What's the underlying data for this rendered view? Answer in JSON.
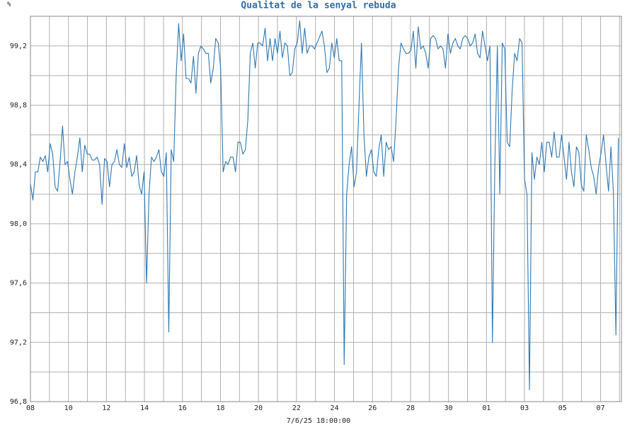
{
  "chart_data": {
    "type": "line",
    "title": "Qualitat de la senyal rebuda",
    "y_label": "%",
    "x_label": "7/6/25 18:00:00",
    "xlim": [
      0,
      31.1
    ],
    "ylim": [
      96.8,
      99.4
    ],
    "grid": true,
    "xticks": [
      {
        "value": 0,
        "label": "08"
      },
      {
        "value": 2,
        "label": "10"
      },
      {
        "value": 4,
        "label": "12"
      },
      {
        "value": 6,
        "label": "14"
      },
      {
        "value": 8,
        "label": "16"
      },
      {
        "value": 10,
        "label": "18"
      },
      {
        "value": 12,
        "label": "20"
      },
      {
        "value": 14,
        "label": "22"
      },
      {
        "value": 16,
        "label": "24"
      },
      {
        "value": 18,
        "label": "26"
      },
      {
        "value": 20,
        "label": "28"
      },
      {
        "value": 22,
        "label": "30"
      },
      {
        "value": 24,
        "label": "01"
      },
      {
        "value": 26,
        "label": "03"
      },
      {
        "value": 28,
        "label": "05"
      },
      {
        "value": 30,
        "label": "07"
      }
    ],
    "minor_xticks": [
      1,
      3,
      5,
      7,
      9,
      11,
      13,
      15,
      17,
      19,
      21,
      23,
      25,
      27,
      29,
      31
    ],
    "yticks": [
      {
        "value": 96.8,
        "label": "96,8"
      },
      {
        "value": 97.2,
        "label": "97,2"
      },
      {
        "value": 97.6,
        "label": "97,6"
      },
      {
        "value": 98.0,
        "label": "98,0"
      },
      {
        "value": 98.4,
        "label": "98,4"
      },
      {
        "value": 98.8,
        "label": "98,8"
      },
      {
        "value": 99.2,
        "label": "99,2"
      }
    ],
    "minor_yticks": [
      97.0,
      97.4,
      97.8,
      98.2,
      98.6,
      99.0,
      99.4
    ],
    "x": [
      0,
      0.13,
      0.26,
      0.39,
      0.52,
      0.65,
      0.78,
      0.91,
      1.04,
      1.17,
      1.3,
      1.43,
      1.56,
      1.69,
      1.82,
      1.95,
      2.08,
      2.21,
      2.34,
      2.47,
      2.6,
      2.73,
      2.86,
      2.99,
      3.12,
      3.25,
      3.38,
      3.51,
      3.64,
      3.77,
      3.9,
      4.03,
      4.16,
      4.29,
      4.42,
      4.55,
      4.68,
      4.81,
      4.94,
      5.07,
      5.2,
      5.33,
      5.46,
      5.59,
      5.72,
      5.85,
      5.98,
      6.11,
      6.24,
      6.37,
      6.5,
      6.63,
      6.76,
      6.89,
      7.02,
      7.15,
      7.28,
      7.41,
      7.54,
      7.67,
      7.8,
      7.93,
      8.06,
      8.19,
      8.32,
      8.45,
      8.58,
      8.71,
      8.84,
      8.97,
      9.1,
      9.23,
      9.36,
      9.49,
      9.62,
      9.75,
      9.88,
      10.01,
      10.14,
      10.27,
      10.4,
      10.53,
      10.66,
      10.79,
      10.92,
      11.05,
      11.18,
      11.31,
      11.44,
      11.57,
      11.7,
      11.83,
      11.96,
      12.09,
      12.22,
      12.35,
      12.48,
      12.61,
      12.74,
      12.87,
      13,
      13.13,
      13.26,
      13.39,
      13.52,
      13.65,
      13.78,
      13.91,
      14.04,
      14.17,
      14.3,
      14.43,
      14.56,
      14.69,
      14.82,
      14.95,
      15.08,
      15.21,
      15.34,
      15.47,
      15.6,
      15.73,
      15.86,
      15.99,
      16.12,
      16.25,
      16.38,
      16.51,
      16.64,
      16.77,
      16.9,
      17.03,
      17.16,
      17.29,
      17.42,
      17.55,
      17.68,
      17.81,
      17.94,
      18.07,
      18.2,
      18.33,
      18.46,
      18.59,
      18.72,
      18.85,
      18.98,
      19.11,
      19.24,
      19.37,
      19.5,
      19.63,
      19.76,
      19.89,
      20.02,
      20.15,
      20.28,
      20.41,
      20.54,
      20.67,
      20.8,
      20.93,
      21.06,
      21.19,
      21.32,
      21.45,
      21.58,
      21.71,
      21.84,
      21.97,
      22.1,
      22.23,
      22.36,
      22.49,
      22.62,
      22.75,
      22.88,
      23.01,
      23.14,
      23.27,
      23.4,
      23.53,
      23.66,
      23.79,
      23.92,
      24.05,
      24.18,
      24.31,
      24.44,
      24.57,
      24.7,
      24.83,
      24.96,
      25.09,
      25.22,
      25.35,
      25.48,
      25.61,
      25.74,
      25.87,
      26,
      26.13,
      26.26,
      26.39,
      26.52,
      26.65,
      26.78,
      26.91,
      27.04,
      27.17,
      27.3,
      27.43,
      27.56,
      27.69,
      27.82,
      27.95,
      28.08,
      28.21,
      28.34,
      28.47,
      28.6,
      28.73,
      28.86,
      28.99,
      29.12,
      29.25,
      29.38,
      29.51,
      29.64,
      29.77,
      29.9,
      30.03,
      30.16,
      30.29,
      30.42,
      30.55,
      30.68,
      30.81,
      30.94
    ],
    "series": [
      {
        "color": "#2f78b4",
        "values": [
          98.27,
          98.16,
          98.35,
          98.35,
          98.45,
          98.42,
          98.46,
          98.35,
          98.54,
          98.47,
          98.25,
          98.22,
          98.42,
          98.66,
          98.4,
          98.42,
          98.3,
          98.2,
          98.35,
          98.45,
          98.58,
          98.35,
          98.53,
          98.47,
          98.47,
          98.43,
          98.43,
          98.45,
          98.4,
          98.13,
          98.44,
          98.42,
          98.25,
          98.4,
          98.42,
          98.5,
          98.4,
          98.38,
          98.54,
          98.38,
          98.45,
          98.32,
          98.35,
          98.46,
          98.26,
          98.2,
          98.35,
          97.6,
          98.2,
          98.45,
          98.42,
          98.45,
          98.5,
          98.35,
          98.32,
          98.48,
          97.27,
          98.5,
          98.42,
          99.0,
          99.35,
          99.1,
          99.28,
          98.98,
          98.98,
          98.95,
          99.13,
          98.88,
          99.15,
          99.2,
          99.18,
          99.15,
          99.15,
          98.95,
          99.05,
          99.25,
          99.22,
          99.05,
          98.35,
          98.42,
          98.4,
          98.45,
          98.45,
          98.35,
          98.55,
          98.55,
          98.47,
          98.5,
          98.7,
          99.15,
          99.22,
          99.05,
          99.22,
          99.22,
          99.2,
          99.32,
          99.1,
          99.25,
          99.1,
          99.25,
          99.15,
          99.3,
          99.12,
          99.22,
          99.2,
          99.0,
          99.02,
          99.18,
          99.22,
          99.37,
          99.15,
          99.32,
          99.15,
          99.2,
          99.2,
          99.18,
          99.22,
          99.26,
          99.3,
          99.2,
          99.02,
          99.05,
          99.22,
          99.12,
          99.25,
          99.1,
          99.1,
          97.05,
          98.2,
          98.4,
          98.52,
          98.25,
          98.35,
          98.8,
          99.22,
          98.6,
          98.32,
          98.45,
          98.5,
          98.35,
          98.32,
          98.5,
          98.6,
          98.32,
          98.55,
          98.5,
          98.52,
          98.42,
          98.7,
          99.05,
          99.22,
          99.18,
          99.15,
          99.15,
          99.17,
          99.3,
          99.05,
          99.33,
          99.18,
          99.2,
          99.15,
          99.05,
          99.25,
          99.27,
          99.25,
          99.18,
          99.2,
          99.18,
          99.05,
          99.28,
          99.15,
          99.22,
          99.25,
          99.2,
          99.18,
          99.25,
          99.27,
          99.25,
          99.2,
          99.22,
          99.28,
          99.15,
          99.12,
          99.3,
          99.2,
          99.1,
          99.2,
          97.2,
          98.4,
          99.2,
          98.2,
          99.22,
          99.18,
          98.55,
          98.52,
          98.9,
          99.15,
          99.1,
          99.25,
          99.22,
          98.3,
          98.2,
          96.88,
          98.48,
          98.3,
          98.45,
          98.4,
          98.55,
          98.35,
          98.55,
          98.55,
          98.45,
          98.62,
          98.45,
          98.45,
          98.6,
          98.45,
          98.3,
          98.55,
          98.35,
          98.25,
          98.52,
          98.48,
          98.26,
          98.22,
          98.6,
          98.5,
          98.38,
          98.32,
          98.2,
          98.38,
          98.48,
          98.6,
          98.4,
          98.22,
          98.52,
          98.2,
          97.25,
          98.58
        ]
      }
    ]
  }
}
